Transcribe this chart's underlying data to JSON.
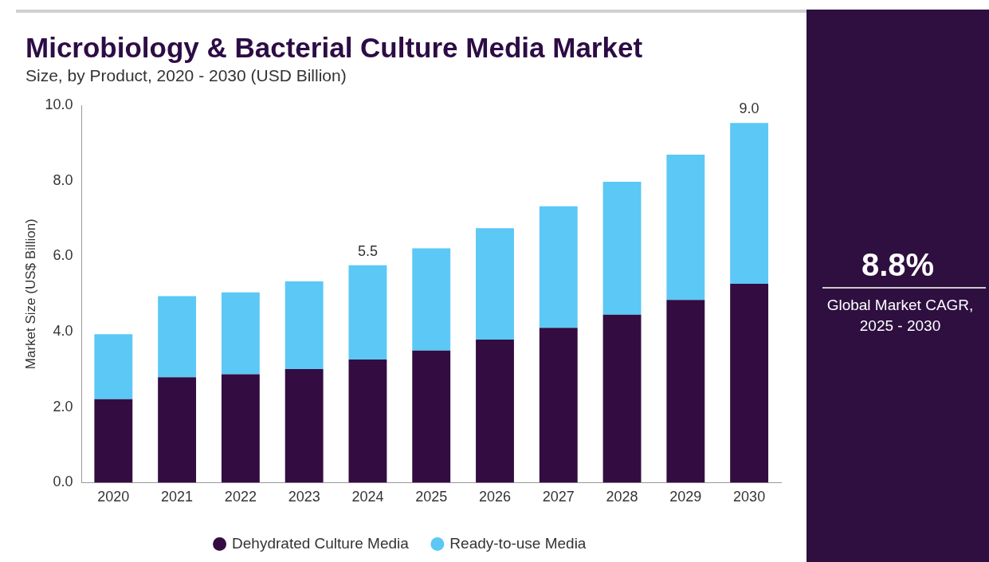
{
  "chart_data": {
    "type": "bar",
    "title": "Microbiology & Bacterial Culture Media Market",
    "subtitle": "Size, by Product, 2020 - 2030 (USD Billion)",
    "ylabel": "Market Size (US$ Billion)",
    "categories": [
      "2020",
      "2021",
      "2022",
      "2023",
      "2024",
      "2025",
      "2026",
      "2027",
      "2028",
      "2029",
      "2030"
    ],
    "stacked": true,
    "series": [
      {
        "name": "Dehydrated Culture Media",
        "color": "#330c42",
        "values": [
          2.21,
          2.79,
          2.87,
          3.01,
          3.26,
          3.5,
          3.79,
          4.1,
          4.45,
          4.84,
          5.27
        ]
      },
      {
        "name": "Ready-to-use Media",
        "color": "#5bc8f5",
        "values": [
          1.72,
          2.15,
          2.17,
          2.32,
          2.5,
          2.71,
          2.95,
          3.22,
          3.52,
          3.85,
          4.26
        ]
      }
    ],
    "ylim": [
      0,
      10
    ],
    "yticks": [
      {
        "value": 0,
        "label": "0.0"
      },
      {
        "value": 2,
        "label": "2.0"
      },
      {
        "value": 4,
        "label": "4.0"
      },
      {
        "value": 6,
        "label": "6.0"
      },
      {
        "value": 8,
        "label": "8.0"
      },
      {
        "value": 10,
        "label": "10.0"
      }
    ],
    "grid": false,
    "legend": "bottom",
    "annotations": [
      "8.8%",
      "Global Market CAGR, 2025 - 2030",
      {
        "text": "5.5",
        "x": "2024",
        "y": 5.76
      },
      {
        "text": "9.0",
        "x": "2030",
        "y": 9.53
      }
    ]
  }
}
